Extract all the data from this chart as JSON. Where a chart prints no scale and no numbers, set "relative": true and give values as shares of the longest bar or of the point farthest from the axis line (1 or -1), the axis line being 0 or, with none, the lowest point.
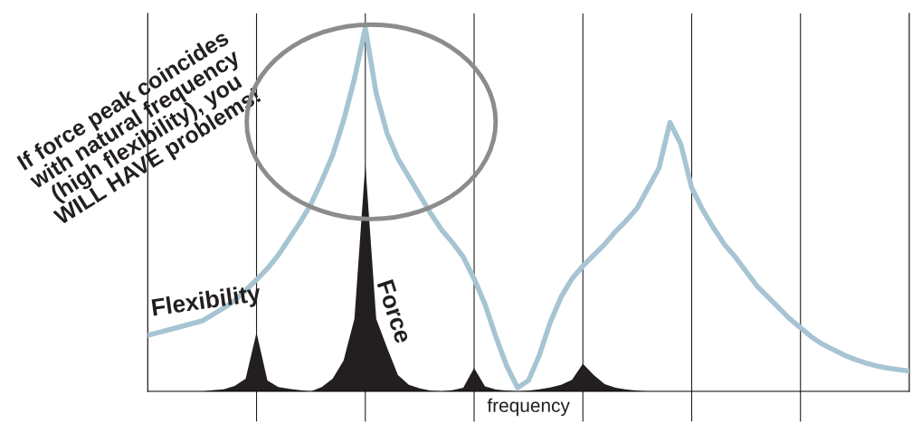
{
  "chart_data": {
    "type": "line",
    "xlabel": "frequency",
    "relative": true,
    "categories": [
      null,
      null,
      null,
      null,
      null,
      null,
      null,
      null,
      null,
      null,
      null,
      null,
      null,
      null,
      null,
      null,
      null,
      null,
      null,
      null,
      null,
      null,
      null,
      null,
      null,
      null,
      null,
      null,
      null,
      null,
      null,
      null,
      null,
      null,
      null,
      null,
      null,
      null,
      null,
      null,
      null,
      null,
      null,
      null,
      null,
      null,
      null,
      null,
      null,
      null,
      null,
      null,
      null,
      null,
      null,
      null,
      null,
      null,
      null,
      null,
      null,
      null,
      null,
      null,
      null,
      null,
      null,
      null,
      null,
      null,
      null
    ],
    "annotations": [
      "If force peak coincides\nwith natural frequency\n(high flexibility), you\nWILL HAVE problems!"
    ],
    "series": [
      {
        "name": "Flexibility",
        "color": "#a7c4d3",
        "values": [
          0.154,
          0.162,
          0.17,
          0.178,
          0.186,
          0.194,
          0.212,
          0.23,
          0.25,
          0.278,
          0.307,
          0.338,
          0.375,
          0.42,
          0.465,
          0.515,
          0.58,
          0.65,
          0.745,
          0.86,
          1.0,
          0.82,
          0.71,
          0.64,
          0.59,
          0.54,
          0.49,
          0.445,
          0.41,
          0.37,
          0.31,
          0.24,
          0.15,
          0.07,
          0.01,
          0.03,
          0.1,
          0.19,
          0.26,
          0.31,
          0.345,
          0.375,
          0.405,
          0.44,
          0.47,
          0.505,
          0.56,
          0.615,
          0.74,
          0.68,
          0.56,
          0.5,
          0.45,
          0.405,
          0.37,
          0.33,
          0.29,
          0.26,
          0.23,
          0.2,
          0.175,
          0.15,
          0.13,
          0.115,
          0.1,
          0.088,
          0.078,
          0.07,
          0.064,
          0.06,
          0.056
        ]
      },
      {
        "name": "Force",
        "type": "area",
        "color": "#231f20",
        "values": [
          null,
          null,
          null,
          null,
          null,
          0,
          0.003,
          0.006,
          0.015,
          0.035,
          0.162,
          0.03,
          0.012,
          0.007,
          0.003,
          0,
          0.012,
          0.035,
          0.085,
          0.2,
          0.625,
          0.2,
          0.12,
          0.045,
          0.018,
          0.008,
          0.002,
          0,
          0.003,
          0.01,
          0.064,
          0.014,
          0.005,
          0.002,
          0,
          0.002,
          0.006,
          0.011,
          0.018,
          0.032,
          0.076,
          0.045,
          0.02,
          0.01,
          0.005,
          0.002,
          0,
          null,
          null,
          null,
          null,
          null,
          null,
          null,
          null,
          null,
          null,
          null,
          null,
          null,
          null,
          null,
          null,
          null,
          null,
          null,
          null,
          null,
          null,
          null,
          null
        ]
      }
    ],
    "grid": "x"
  }
}
